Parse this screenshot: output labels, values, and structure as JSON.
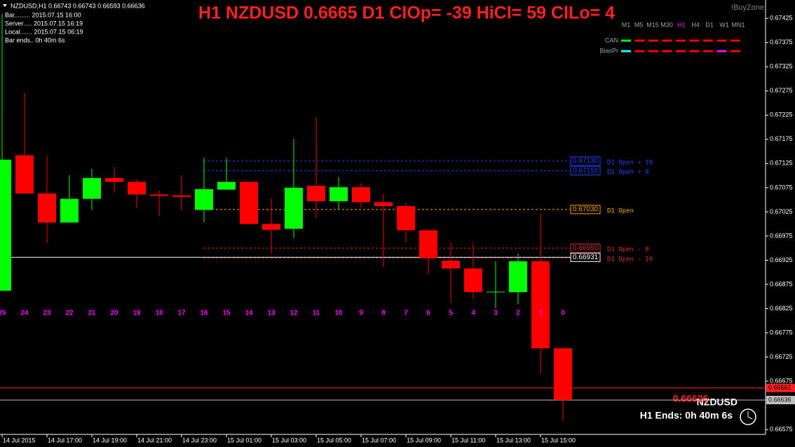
{
  "chart_data": {
    "type": "candlestick",
    "title": "H1 NZDUSD 0.6665 D1 ClOp= -39 HiCl= 59 ClLo= 4",
    "symbol_line": "NZDUSD,H1  0.66743 0.66743 0.66593 0.66636",
    "info_lines": [
      "Bar......... 2015.07.15 16:00",
      "Server..... 2015.07.15 16:19",
      "Local....... 2015.07.15 06:19",
      "Bar ends.. 0h 40m 6s"
    ],
    "brand": "!BuyZone",
    "timeframes": [
      "M1",
      "M5",
      "M15",
      "M30",
      "H1",
      "H4",
      "D1",
      "W1",
      "MN1"
    ],
    "active_timeframe": "H1",
    "indicator_rows": [
      {
        "name": "CAN",
        "colors": [
          "#00ff00",
          "#ff0000",
          "#ff0000",
          "#ff0000",
          "#ff0000",
          "#ff0000",
          "#ff0000",
          "#ff0000",
          "#ff0000"
        ]
      },
      {
        "name": "BiasPr",
        "colors": [
          "#00ffff",
          "#ff0000",
          "#ff0000",
          "#ff0000",
          "#ff0000",
          "#ff0000",
          "#ff0000",
          "#ff00ff",
          "#ff0000"
        ]
      }
    ],
    "categories": [
      "14 Jul 2015",
      null,
      "14 Jul 17:00",
      null,
      "14 Jul 19:00",
      null,
      "14 Jul 21:00",
      null,
      "14 Jul 23:00",
      null,
      "15 Jul 01:00",
      null,
      "15 Jul 03:00",
      null,
      "15 Jul 05:00",
      null,
      "15 Jul 07:00",
      null,
      "15 Jul 09:00",
      null,
      "15 Jul 11:00",
      null,
      "15 Jul 13:00",
      null,
      "15 Jul 15:00",
      null
    ],
    "bar_numbers": [
      "25",
      "24",
      "23",
      "22",
      "21",
      "20",
      "19",
      "18",
      "17",
      "16",
      "15",
      "14",
      "13",
      "12",
      "11",
      "10",
      "9",
      "8",
      "7",
      "6",
      "5",
      "4",
      "3",
      "2",
      "1",
      "0"
    ],
    "open": [
      0.66862,
      0.67142,
      0.67063,
      0.67003,
      0.67052,
      0.67095,
      0.67087,
      0.67061,
      0.67059,
      0.67029,
      0.67071,
      0.67087,
      0.67,
      0.6699,
      0.67079,
      0.67047,
      0.67076,
      0.67045,
      0.67037,
      0.66987,
      0.66924,
      0.66908,
      0.66859,
      0.66859,
      0.66923,
      0.66743
    ],
    "high": [
      0.67434,
      0.67271,
      0.67142,
      0.67101,
      0.67114,
      0.67118,
      0.67092,
      0.67069,
      0.67101,
      0.67137,
      0.67137,
      0.67087,
      0.67053,
      0.67176,
      0.67221,
      0.67097,
      0.67084,
      0.67062,
      0.67043,
      0.66987,
      0.66962,
      0.6696,
      0.66923,
      0.66939,
      0.67021,
      0.66743
    ],
    "low": [
      0.66862,
      0.67063,
      0.6696,
      0.67003,
      0.67029,
      0.67065,
      0.67033,
      0.67016,
      0.67029,
      0.67003,
      0.67071,
      0.67,
      0.66939,
      0.66971,
      0.67011,
      0.67029,
      0.67034,
      0.66911,
      0.66962,
      0.66895,
      0.66837,
      0.66845,
      0.66826,
      0.66834,
      0.66691,
      0.66593
    ],
    "close": [
      0.67133,
      0.67063,
      0.67003,
      0.67052,
      0.67095,
      0.67087,
      0.67061,
      0.67058,
      0.67056,
      0.67072,
      0.67087,
      0.67,
      0.66988,
      0.67075,
      0.67047,
      0.67076,
      0.67045,
      0.67037,
      0.66987,
      0.66929,
      0.66908,
      0.66859,
      0.6686,
      0.66923,
      0.66743,
      0.66636
    ],
    "up_color": "#00ff00",
    "down_color": "#ff0000",
    "ylim": [
      0.66565,
      0.67463
    ],
    "yticks": [
      0.67425,
      0.67375,
      0.67325,
      0.67275,
      0.67225,
      0.67175,
      0.67125,
      0.67075,
      0.67025,
      0.66975,
      0.66925,
      0.66875,
      0.66825,
      0.66775,
      0.66725,
      0.66675,
      0.66575
    ],
    "levels": [
      {
        "name": "D1 Open + 10",
        "value": 0.6713,
        "value_label": "0.67130",
        "color": "#2040ff"
      },
      {
        "name": "D1 Open + 8",
        "value": 0.6711,
        "value_label": "0.67110",
        "color": "#2040ff"
      },
      {
        "name": "D1 Open",
        "value": 0.6703,
        "value_label": "0.67030",
        "color": "#ffa500"
      },
      {
        "name": "D1 Open - 8",
        "value": 0.6695,
        "value_label": "0.66950",
        "color": "#d03030"
      },
      {
        "name": "D1 Open - 10",
        "value": 0.6693,
        "color": "#d03030"
      }
    ],
    "hlines": [
      {
        "value": 0.66931,
        "value_label": "0.66931",
        "color": "#ffffff",
        "end": "level"
      },
      {
        "value": 0.66661,
        "value_label": "0.66661",
        "color": "#ff2020",
        "end": "axis"
      },
      {
        "value": 0.66636,
        "value_label": "0.66636",
        "color": "#c0c0c0",
        "end": "axis"
      }
    ],
    "footer": {
      "price": "0.66636",
      "symbol": "NZDUSD",
      "bar_end": "H1 Ends: 0h 40m 6s"
    }
  }
}
